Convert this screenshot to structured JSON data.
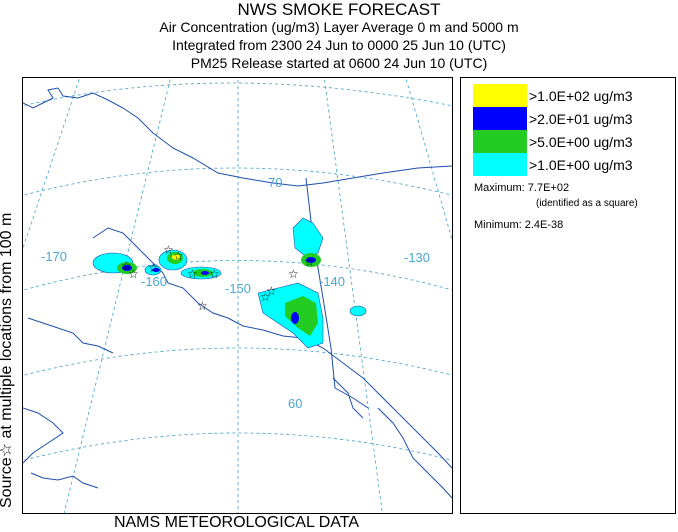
{
  "header": {
    "title": "NWS SMOKE FORECAST",
    "line2": "Air Concentration (ug/m3) Layer Average    0 m and  5000 m",
    "line3": "Integrated from 2300 24 Jun to 0000 25 Jun 10 (UTC)",
    "line4": "PM25 Release started at 0600 24 Jun 10 (UTC)"
  },
  "side_label": "Source☆  at multiple locations   from   100 m",
  "footer": "NAMS METEOROLOGICAL DATA",
  "map": {
    "lon_labels": [
      "-170",
      "-160",
      "-150",
      "-140",
      "-130"
    ],
    "lat_labels": [
      "70",
      "60"
    ],
    "colors": {
      "land_outline": "#1e4fae",
      "grid": "#3ea0c8",
      "label": "#4aa8d0"
    }
  },
  "legend": {
    "items": [
      {
        "label": ">1.0E+02 ug/m3",
        "color": "#ffff00"
      },
      {
        "label": ">2.0E+01 ug/m3",
        "color": "#0000ff"
      },
      {
        "label": ">5.0E+00 ug/m3",
        "color": "#22cc22"
      },
      {
        "label": ">1.0E+00 ug/m3",
        "color": "#00ffff"
      }
    ],
    "maximum": "Maximum: 7.7E+02",
    "maximum_note": "(identified as a square)",
    "minimum": "Minimum: 2.4E-38"
  }
}
